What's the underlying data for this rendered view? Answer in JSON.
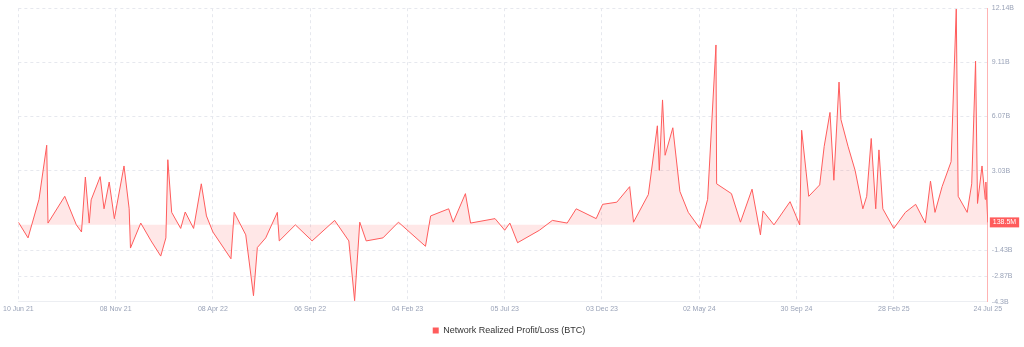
{
  "chart_data": {
    "type": "area",
    "legend": "bottom",
    "grid": true,
    "xlim": [
      "2021-06-10",
      "2025-07-24"
    ],
    "xticks": [
      {
        "value": "2021-06-10",
        "label": "10 Jun 21"
      },
      {
        "value": "2021-11-08",
        "label": "08 Nov 21"
      },
      {
        "value": "2022-04-08",
        "label": "08 Apr 22"
      },
      {
        "value": "2022-09-06",
        "label": "06 Sep 22"
      },
      {
        "value": "2023-02-04",
        "label": "04 Feb 23"
      },
      {
        "value": "2023-07-05",
        "label": "05 Jul 23"
      },
      {
        "value": "2023-12-03",
        "label": "03 Dec 23"
      },
      {
        "value": "2024-05-02",
        "label": "02 May 24"
      },
      {
        "value": "2024-09-30",
        "label": "30 Sep 24"
      },
      {
        "value": "2025-02-28",
        "label": "28 Feb 25"
      },
      {
        "value": "2025-07-24",
        "label": "24 Jul 25"
      }
    ],
    "ylim": [
      -4.3,
      12.14
    ],
    "yticks": [
      {
        "value": -4.3,
        "label": "-4.3B"
      },
      {
        "value": -2.87,
        "label": "-2.87B"
      },
      {
        "value": -1.43,
        "label": "-1.43B"
      },
      {
        "value": 3.03,
        "label": "3.03B"
      },
      {
        "value": 6.07,
        "label": "6.07B"
      },
      {
        "value": 9.11,
        "label": "9.11B"
      },
      {
        "value": 12.14,
        "label": "12.14B"
      }
    ],
    "annotations": [
      {
        "text": "138.5M",
        "x": "2025-07-24",
        "y": 0.1385
      }
    ],
    "x": [
      "2021-06-10",
      "2021-06-25",
      "2021-07-12",
      "2021-07-24",
      "2021-07-26",
      "2021-08-21",
      "2021-09-08",
      "2021-09-16",
      "2021-09-22",
      "2021-09-28",
      "2021-10-01",
      "2021-10-15",
      "2021-10-21",
      "2021-10-29",
      "2021-11-06",
      "2021-11-21",
      "2021-11-29",
      "2021-12-01",
      "2021-12-17",
      "2022-01-02",
      "2022-01-17",
      "2022-01-25",
      "2022-01-28",
      "2022-02-03",
      "2022-02-17",
      "2022-02-24",
      "2022-03-09",
      "2022-03-21",
      "2022-03-29",
      "2022-04-08",
      "2022-05-06",
      "2022-05-11",
      "2022-05-29",
      "2022-06-10",
      "2022-06-16",
      "2022-06-29",
      "2022-07-17",
      "2022-07-20",
      "2022-08-14",
      "2022-09-09",
      "2022-10-14",
      "2022-11-05",
      "2022-11-14",
      "2022-11-22",
      "2022-12-02",
      "2022-12-28",
      "2023-01-21",
      "2023-03-04",
      "2023-03-12",
      "2023-04-09",
      "2023-04-16",
      "2023-05-05",
      "2023-05-13",
      "2023-06-20",
      "2023-07-05",
      "2023-07-13",
      "2023-07-25",
      "2023-08-28",
      "2023-09-17",
      "2023-10-10",
      "2023-10-24",
      "2023-11-24",
      "2023-12-04",
      "2023-12-26",
      "2024-01-15",
      "2024-01-21",
      "2024-02-13",
      "2024-02-27",
      "2024-03-01",
      "2024-03-06",
      "2024-03-10",
      "2024-03-22",
      "2024-04-02",
      "2024-04-15",
      "2024-05-03",
      "2024-05-15",
      "2024-05-28",
      "2024-05-29",
      "2024-06-21",
      "2024-07-05",
      "2024-07-23",
      "2024-08-05",
      "2024-08-09",
      "2024-08-26",
      "2024-09-20",
      "2024-10-05",
      "2024-10-08",
      "2024-10-19",
      "2024-11-05",
      "2024-11-12",
      "2024-11-21",
      "2024-11-27",
      "2024-12-05",
      "2024-12-08",
      "2024-12-19",
      "2024-12-30",
      "2025-01-11",
      "2025-01-17",
      "2025-01-24",
      "2025-01-31",
      "2025-02-05",
      "2025-02-11",
      "2025-02-28",
      "2025-03-18",
      "2025-04-03",
      "2025-04-18",
      "2025-04-26",
      "2025-05-03",
      "2025-05-14",
      "2025-05-28",
      "2025-06-05",
      "2025-06-08",
      "2025-06-22",
      "2025-06-29",
      "2025-07-05",
      "2025-07-08",
      "2025-07-15",
      "2025-07-20",
      "2025-07-21",
      "2025-07-24"
    ],
    "series": [
      {
        "name": "Network Realized Profit/Loss (BTC)",
        "color": "#ff5c5c",
        "values": [
          0.15,
          -0.73,
          1.43,
          4.46,
          0.1,
          1.6,
          0,
          -0.4,
          2.68,
          0.1,
          1.4,
          2.7,
          0.9,
          2.4,
          0.35,
          3.3,
          0.9,
          -1.3,
          0.1,
          -0.9,
          -1.75,
          -0.73,
          3.65,
          0.7,
          -0.2,
          0.72,
          -0.2,
          2.3,
          0.5,
          -0.4,
          -1.9,
          0.7,
          -0.56,
          -3.97,
          -1.27,
          -0.73,
          0.7,
          -0.9,
          0,
          -0.9,
          0.25,
          -0.9,
          -4.25,
          0.15,
          -0.9,
          -0.73,
          0.15,
          -1.2,
          0.5,
          0.9,
          0.15,
          1.75,
          0.1,
          0.35,
          -0.3,
          0.1,
          -1.0,
          -0.3,
          0.25,
          0.1,
          0.9,
          0.35,
          1.15,
          1.27,
          2.14,
          0.15,
          1.7,
          5.55,
          3.05,
          7.0,
          3.9,
          5.44,
          1.87,
          0.7,
          -0.2,
          1.43,
          10.08,
          2.3,
          1.75,
          0.15,
          2.0,
          -0.56,
          0.78,
          0,
          1.3,
          0,
          5.3,
          1.6,
          2.24,
          4.4,
          6.3,
          2.5,
          8.0,
          5.9,
          4.4,
          3.05,
          0.9,
          1.6,
          4.84,
          0.9,
          4.2,
          0.9,
          -0.2,
          0.7,
          1.15,
          0.1,
          2.45,
          0.7,
          2.14,
          3.54,
          12.09,
          1.6,
          0.7,
          2.3,
          9.17,
          1.2,
          3.3,
          1.43,
          2.4,
          0.1385
        ]
      }
    ]
  }
}
